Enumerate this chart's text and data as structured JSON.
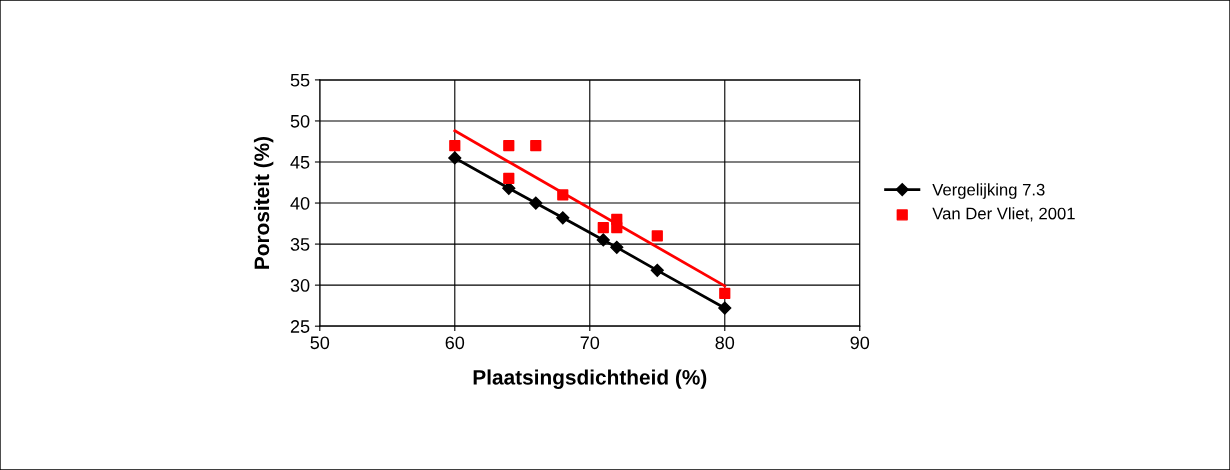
{
  "chart_data": {
    "type": "line",
    "xlabel": "Plaatsingsdichtheid (%)",
    "ylabel": "Porositeit (%)",
    "xlim": [
      50,
      90
    ],
    "xticks": [
      50,
      60,
      70,
      80,
      90
    ],
    "ylim": [
      25,
      55
    ],
    "yticks": [
      25,
      30,
      35,
      40,
      45,
      50,
      55
    ],
    "grid": true,
    "legend": "right",
    "series": [
      {
        "name": "Vergelijking 7.3",
        "marker": "diamond",
        "color": "#000000",
        "x": [
          60,
          64,
          66,
          68,
          71,
          72,
          75,
          80
        ],
        "values": [
          45.5,
          41.8,
          40,
          38.2,
          35.5,
          34.6,
          31.8,
          27.2
        ]
      },
      {
        "name": "Van Der Vliet, 2001",
        "type": "scatter",
        "marker": "square",
        "color": "#ff0000",
        "x": [
          60,
          64,
          64,
          66,
          68,
          71,
          72,
          72,
          75,
          80
        ],
        "values": [
          47,
          47,
          43,
          47,
          41,
          37,
          38,
          37,
          36,
          29
        ]
      },
      {
        "marker": "none",
        "color": "#ff0000",
        "x": [
          60,
          80
        ],
        "values": [
          48.8,
          29.9
        ]
      }
    ]
  }
}
